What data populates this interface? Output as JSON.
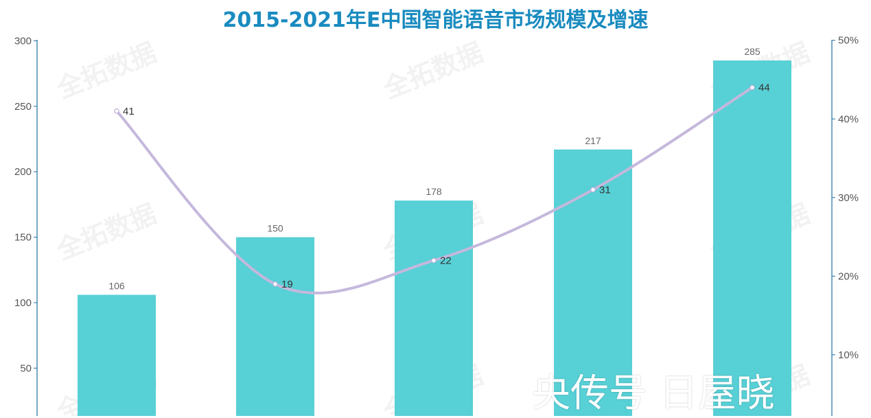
{
  "chart_data": {
    "type": "bar",
    "title": "2015-2021年E中国智能语音市场规模及增速",
    "categories": [
      "",
      "",
      "",
      "",
      ""
    ],
    "series": [
      {
        "values": [
          106,
          150,
          178,
          217,
          285
        ],
        "color": "#57d0d6",
        "axis": "left"
      },
      {
        "values": [
          41,
          19,
          22,
          31,
          44
        ],
        "color": "#c5b8dc",
        "axis": "right",
        "type": "line"
      }
    ],
    "left_axis": {
      "ticks": [
        50,
        100,
        150,
        200,
        250,
        300
      ]
    },
    "right_axis": {
      "ticks": [
        "10%",
        "20%",
        "30%",
        "40%",
        "50%"
      ]
    },
    "grid": false
  },
  "watermark": "全拓数据",
  "overlay_text": "央传号 日屋晓"
}
